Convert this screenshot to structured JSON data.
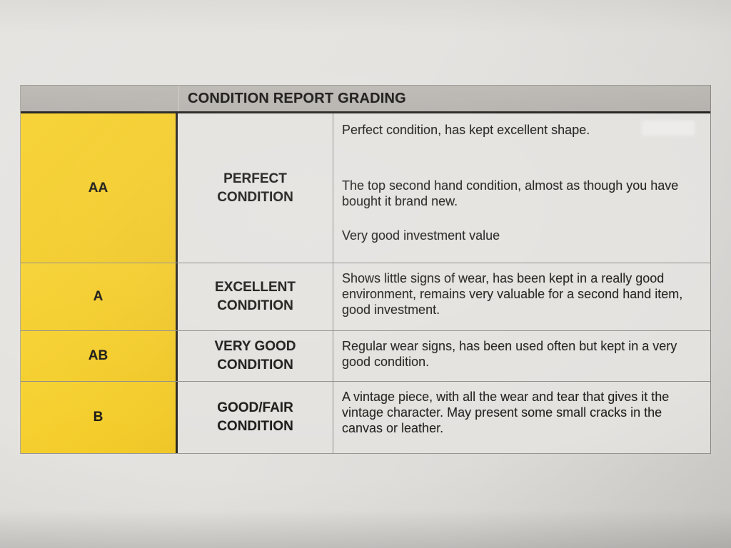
{
  "table": {
    "title": "CONDITION REPORT GRADING",
    "rows": [
      {
        "grade": "AA",
        "label": "PERFECT CONDITION",
        "description_paragraphs": [
          "Perfect condition, has kept excellent shape.",
          "The top second hand condition, almost as though you have bought it brand new.",
          "Very good investment value"
        ]
      },
      {
        "grade": "A",
        "label": "EXCELLENT CONDITION",
        "description_paragraphs": [
          "Shows little signs of wear, has been kept in a really good environment, remains very valuable for a second hand item, good investment."
        ]
      },
      {
        "grade": "AB",
        "label": "VERY GOOD CONDITION",
        "description_paragraphs": [
          "Regular wear signs, has been used often but kept in a very good condition."
        ]
      },
      {
        "grade": "B",
        "label": "GOOD/FAIR CONDITION",
        "description_paragraphs": [
          "A vintage piece, with all the wear and tear that gives it the vintage character. May present some small cracks in the canvas or leather."
        ]
      }
    ]
  },
  "colors": {
    "grade_column_yellow": "#f4cd2b",
    "header_bar_gray": "#b8b4af",
    "cell_background": "#e4e2df",
    "thick_border": "#232220",
    "thin_border": "#8f8d89",
    "text": "#1d1c1a"
  }
}
